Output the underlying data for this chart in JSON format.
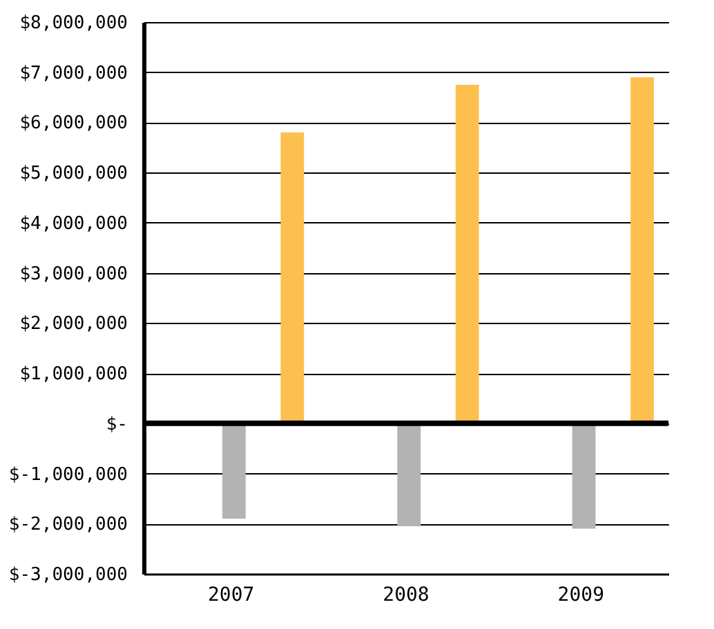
{
  "chart_data": {
    "type": "bar",
    "categories": [
      "2007",
      "2008",
      "2009"
    ],
    "series": [
      {
        "color": "#b3b3b3",
        "values": [
          -1900000,
          -2050000,
          -2100000
        ]
      },
      {
        "color": "#fdc04f",
        "values": [
          5800000,
          6750000,
          6900000
        ]
      }
    ],
    "ylim": [
      -3000000,
      8000000
    ],
    "yticks": [
      {
        "value": -3000000,
        "label": "$-3,000,000"
      },
      {
        "value": -2000000,
        "label": "$-2,000,000"
      },
      {
        "value": -1000000,
        "label": "$-1,000,000"
      },
      {
        "value": 0,
        "label": "$-"
      },
      {
        "value": 1000000,
        "label": "$1,000,000"
      },
      {
        "value": 2000000,
        "label": "$2,000,000"
      },
      {
        "value": 3000000,
        "label": "$3,000,000"
      },
      {
        "value": 4000000,
        "label": "$4,000,000"
      },
      {
        "value": 5000000,
        "label": "$5,000,000"
      },
      {
        "value": 6000000,
        "label": "$6,000,000"
      },
      {
        "value": 7000000,
        "label": "$7,000,000"
      },
      {
        "value": 8000000,
        "label": "$8,000,000"
      }
    ],
    "grid": "y",
    "ref_lines": [
      {
        "axis": "y",
        "value": 0,
        "color": "#000000"
      }
    ]
  }
}
